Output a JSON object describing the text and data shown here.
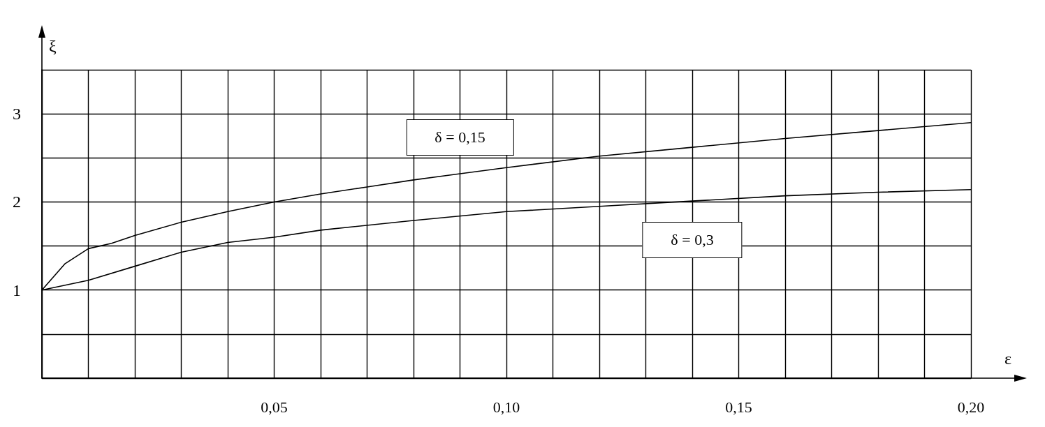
{
  "chart_data": {
    "type": "line",
    "xlabel": "ε",
    "ylabel": "ξ",
    "xlim": [
      0,
      0.2
    ],
    "ylim": [
      0,
      3.5
    ],
    "xticks": [
      {
        "value": 0,
        "label": null
      },
      {
        "value": 0.01,
        "label": null
      },
      {
        "value": 0.02,
        "label": null
      },
      {
        "value": 0.03,
        "label": null
      },
      {
        "value": 0.04,
        "label": null
      },
      {
        "value": 0.05,
        "label": "0,05"
      },
      {
        "value": 0.06,
        "label": null
      },
      {
        "value": 0.07,
        "label": null
      },
      {
        "value": 0.08,
        "label": null
      },
      {
        "value": 0.09,
        "label": null
      },
      {
        "value": 0.1,
        "label": "0,10"
      },
      {
        "value": 0.11,
        "label": null
      },
      {
        "value": 0.12,
        "label": null
      },
      {
        "value": 0.13,
        "label": null
      },
      {
        "value": 0.14,
        "label": null
      },
      {
        "value": 0.15,
        "label": "0,15"
      },
      {
        "value": 0.16,
        "label": null
      },
      {
        "value": 0.17,
        "label": null
      },
      {
        "value": 0.18,
        "label": null
      },
      {
        "value": 0.19,
        "label": null
      },
      {
        "value": 0.2,
        "label": "0,20"
      }
    ],
    "yticks": [
      {
        "value": 0,
        "label": null
      },
      {
        "value": 0.5,
        "label": null
      },
      1,
      {
        "value": 1.5,
        "label": null
      },
      2,
      {
        "value": 2.5,
        "label": null
      },
      3,
      {
        "value": 3.5,
        "label": null
      }
    ],
    "grid": true,
    "legend": false,
    "line_style": "solid",
    "series": [
      {
        "name": "δ = 0,15",
        "color": "#000000",
        "x": [
          0,
          0.005,
          0.01,
          0.015,
          0.02,
          0.03,
          0.04,
          0.05,
          0.06,
          0.07,
          0.08,
          0.09,
          0.1,
          0.12,
          0.14,
          0.16,
          0.18,
          0.2
        ],
        "values": [
          1,
          1.3,
          1.47,
          1.53,
          1.62,
          1.77,
          1.89,
          2.0,
          2.09,
          2.17,
          2.25,
          2.32,
          2.39,
          2.52,
          2.62,
          2.72,
          2.81,
          2.9
        ]
      },
      {
        "name": "δ = 0,3",
        "color": "#000000",
        "x": [
          0,
          0.01,
          0.02,
          0.03,
          0.04,
          0.05,
          0.06,
          0.08,
          0.1,
          0.12,
          0.14,
          0.16,
          0.18,
          0.2
        ],
        "values": [
          1,
          1.11,
          1.27,
          1.43,
          1.54,
          1.6,
          1.68,
          1.79,
          1.89,
          1.95,
          2.01,
          2.07,
          2.11,
          2.14
        ]
      }
    ]
  }
}
